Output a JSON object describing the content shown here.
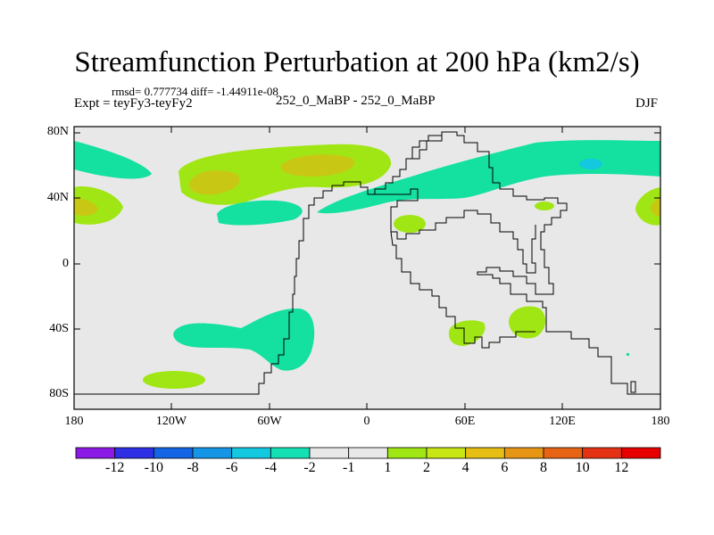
{
  "title": "Streamfunction Perturbation at 200 hPa (km2/s)",
  "stats": "rmsd= 0.777734 diff= -1.44911e-08",
  "expt": "Expt = teyFy3-teyFy2",
  "runs": "252_0_MaBP - 252_0_MaBP",
  "season": "DJF",
  "lat_ticks": [
    "80N",
    "40N",
    "0",
    "40S",
    "80S"
  ],
  "lon_ticks": [
    "180",
    "120W",
    "60W",
    "0",
    "60E",
    "120E",
    "180"
  ],
  "colorbar": {
    "labels": [
      "-12",
      "-10",
      "-8",
      "-6",
      "-4",
      "-2",
      "-1",
      "1",
      "2",
      "4",
      "6",
      "8",
      "10",
      "12"
    ],
    "colors": [
      "#8c1ae6",
      "#2f2fe6",
      "#1464e6",
      "#1495e6",
      "#14c8e0",
      "#14e0b4",
      "#e8e8e8",
      "#a0e614",
      "#c8e614",
      "#e6be14",
      "#e69614",
      "#e66414",
      "#e63214",
      "#e60000"
    ]
  },
  "colors": {
    "background": "#e8e8e8",
    "neg_light": "#14e0a0",
    "neg_mid": "#14c8e0",
    "pos_light": "#a0e614",
    "pos_mid": "#c8c814"
  }
}
